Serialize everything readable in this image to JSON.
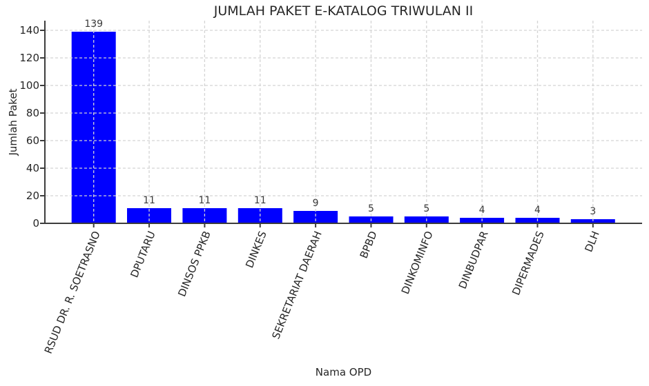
{
  "figure": {
    "background": "#ffffff"
  },
  "chart_data": {
    "type": "bar",
    "title": "JUMLAH PAKET E-KATALOG TRIWULAN II",
    "xlabel": "Nama OPD",
    "ylabel": "Jumlah Paket",
    "categories": [
      "RSUD DR. R. SOETRASNO",
      "DPUTARU",
      "DINSOS PPKB",
      "DINKES",
      "SEKRETARIAT DAERAH",
      "BPBD",
      "DINKOMINFO",
      "DINBUDPAR",
      "DIPERMADES",
      "DLH"
    ],
    "values": [
      139,
      11,
      11,
      11,
      9,
      5,
      5,
      4,
      4,
      3
    ],
    "show_value_labels": true,
    "yticks": [
      0,
      20,
      40,
      60,
      80,
      100,
      120,
      140
    ],
    "ylim": [
      0,
      147
    ],
    "grid": true,
    "grid_style": "dashed",
    "grid_over_bars": true,
    "legend": "none",
    "x_tick_label_rotation_deg": 68,
    "colors": {
      "bar": "#0000ff",
      "grid": "#d4d4d4",
      "spine": "#3c3c3c",
      "text": "#262626",
      "value_label": "#3a3a3a",
      "background": "#ffffff"
    }
  }
}
